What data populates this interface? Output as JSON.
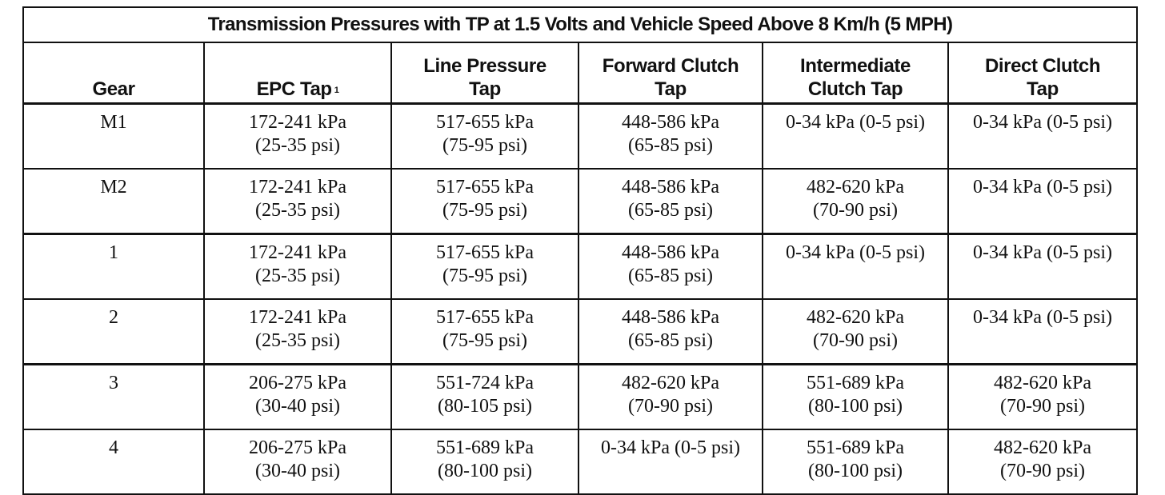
{
  "table": {
    "title": "Transmission Pressures with TP at 1.5 Volts and Vehicle Speed Above 8 Km/h (5 MPH)",
    "headers": [
      {
        "lines": [
          "Gear"
        ],
        "footnote": ""
      },
      {
        "lines": [
          "EPC Tap"
        ],
        "footnote": "1"
      },
      {
        "lines": [
          "Line Pressure",
          "Tap"
        ],
        "footnote": ""
      },
      {
        "lines": [
          "Forward Clutch",
          "Tap"
        ],
        "footnote": ""
      },
      {
        "lines": [
          "Intermediate",
          "Clutch Tap"
        ],
        "footnote": ""
      },
      {
        "lines": [
          "Direct Clutch",
          "Tap"
        ],
        "footnote": ""
      }
    ],
    "rows": [
      {
        "gear": "M1",
        "epc": [
          "172-241 kPa",
          "(25-35 psi)"
        ],
        "line": [
          "517-655 kPa",
          "(75-95 psi)"
        ],
        "forward": [
          "448-586 kPa",
          "(65-85 psi)"
        ],
        "intermediate": [
          "0-34 kPa (0-5 psi)",
          ""
        ],
        "direct": [
          "0-34 kPa (0-5 psi)",
          ""
        ]
      },
      {
        "gear": "M2",
        "epc": [
          "172-241 kPa",
          "(25-35 psi)"
        ],
        "line": [
          "517-655 kPa",
          "(75-95 psi)"
        ],
        "forward": [
          "448-586 kPa",
          "(65-85 psi)"
        ],
        "intermediate": [
          "482-620 kPa",
          "(70-90 psi)"
        ],
        "direct": [
          "0-34 kPa (0-5 psi)",
          ""
        ]
      },
      {
        "gear": "1",
        "epc": [
          "172-241 kPa",
          "(25-35 psi)"
        ],
        "line": [
          "517-655 kPa",
          "(75-95 psi)"
        ],
        "forward": [
          "448-586 kPa",
          "(65-85 psi)"
        ],
        "intermediate": [
          "0-34 kPa (0-5 psi)",
          ""
        ],
        "direct": [
          "0-34 kPa (0-5 psi)",
          ""
        ]
      },
      {
        "gear": "2",
        "epc": [
          "172-241 kPa",
          "(25-35 psi)"
        ],
        "line": [
          "517-655 kPa",
          "(75-95 psi)"
        ],
        "forward": [
          "448-586 kPa",
          "(65-85 psi)"
        ],
        "intermediate": [
          "482-620 kPa",
          "(70-90 psi)"
        ],
        "direct": [
          "0-34 kPa (0-5 psi)",
          ""
        ]
      },
      {
        "gear": "3",
        "epc": [
          "206-275 kPa",
          "(30-40 psi)"
        ],
        "line": [
          "551-724 kPa",
          "(80-105 psi)"
        ],
        "forward": [
          "482-620 kPa",
          "(70-90 psi)"
        ],
        "intermediate": [
          "551-689 kPa",
          "(80-100 psi)"
        ],
        "direct": [
          "482-620 kPa",
          "(70-90 psi)"
        ]
      },
      {
        "gear": "4",
        "epc": [
          "206-275 kPa",
          "(30-40 psi)"
        ],
        "line": [
          "551-689 kPa",
          "(80-100 psi)"
        ],
        "forward": [
          "0-34 kPa (0-5 psi)",
          ""
        ],
        "intermediate": [
          "551-689 kPa",
          "(80-100 psi)"
        ],
        "direct": [
          "482-620 kPa",
          "(70-90 psi)"
        ]
      }
    ]
  }
}
